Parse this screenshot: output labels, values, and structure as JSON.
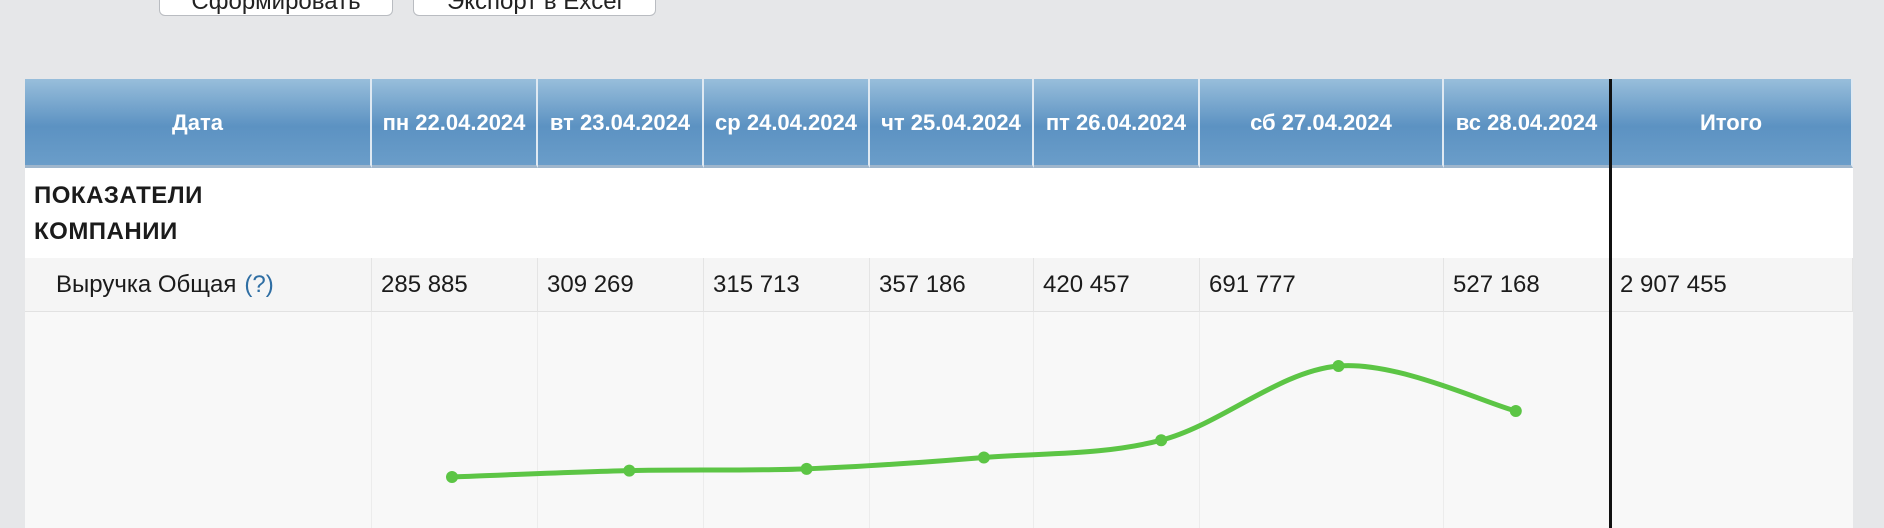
{
  "toolbar": {
    "buttons": [
      "Сформировать",
      "Экспорт в Excel"
    ]
  },
  "table": {
    "header": {
      "first": "Дата",
      "days": [
        {
          "weekday": "пн",
          "date": "22.04.2024"
        },
        {
          "weekday": "вт",
          "date": "23.04.2024"
        },
        {
          "weekday": "ср",
          "date": "24.04.2024"
        },
        {
          "weekday": "чт",
          "date": "25.04.2024"
        },
        {
          "weekday": "пт",
          "date": "26.04.2024"
        },
        {
          "weekday": "сб",
          "date": "27.04.2024"
        },
        {
          "weekday": "вс",
          "date": "28.04.2024"
        }
      ],
      "total": "Итого"
    },
    "section": "ПОКАЗАТЕЛИ КОМПАНИИ",
    "revenue": {
      "label": "Выручка Общая",
      "help": "(?)",
      "values": [
        285885,
        309269,
        315713,
        357186,
        420457,
        691777,
        527168
      ],
      "value_labels": [
        "285 885",
        "309 269",
        "315 713",
        "357 186",
        "420 457",
        "691 777",
        "527 168"
      ],
      "total": 2907455,
      "total_label": "2 907 455",
      "color": "#5cc545"
    }
  }
}
